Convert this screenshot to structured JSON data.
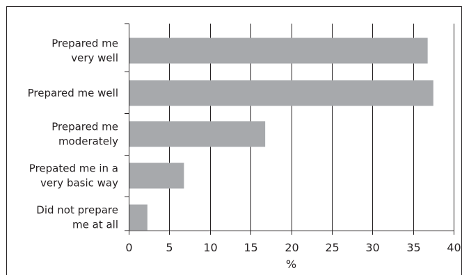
{
  "chart_data": {
    "type": "bar",
    "orientation": "horizontal",
    "categories": [
      "Prepared me very well",
      "Prepared me well",
      "Prepared me moderately",
      "Prepated me in a very basic way",
      "Did not prepare me at all"
    ],
    "category_label_lines": [
      [
        "Prepared me",
        "very well"
      ],
      [
        "Prepared me well"
      ],
      [
        "Prepared me",
        "moderately"
      ],
      [
        "Prepated me in a",
        "very basic way"
      ],
      [
        "Did not prepare",
        "me at all"
      ]
    ],
    "values": [
      36.8,
      37.5,
      16.8,
      6.8,
      2.3
    ],
    "xlabel": "%",
    "ylabel": "",
    "title": "",
    "xlim": [
      0,
      40
    ],
    "xticks": [
      0,
      5,
      10,
      15,
      20,
      25,
      30,
      35,
      40
    ],
    "grid": "vertical",
    "legend": "none",
    "colors": {
      "bar": "#a7a9ac",
      "gridline": "#231f20",
      "text": "#231f20",
      "frame": "#231f20"
    }
  }
}
